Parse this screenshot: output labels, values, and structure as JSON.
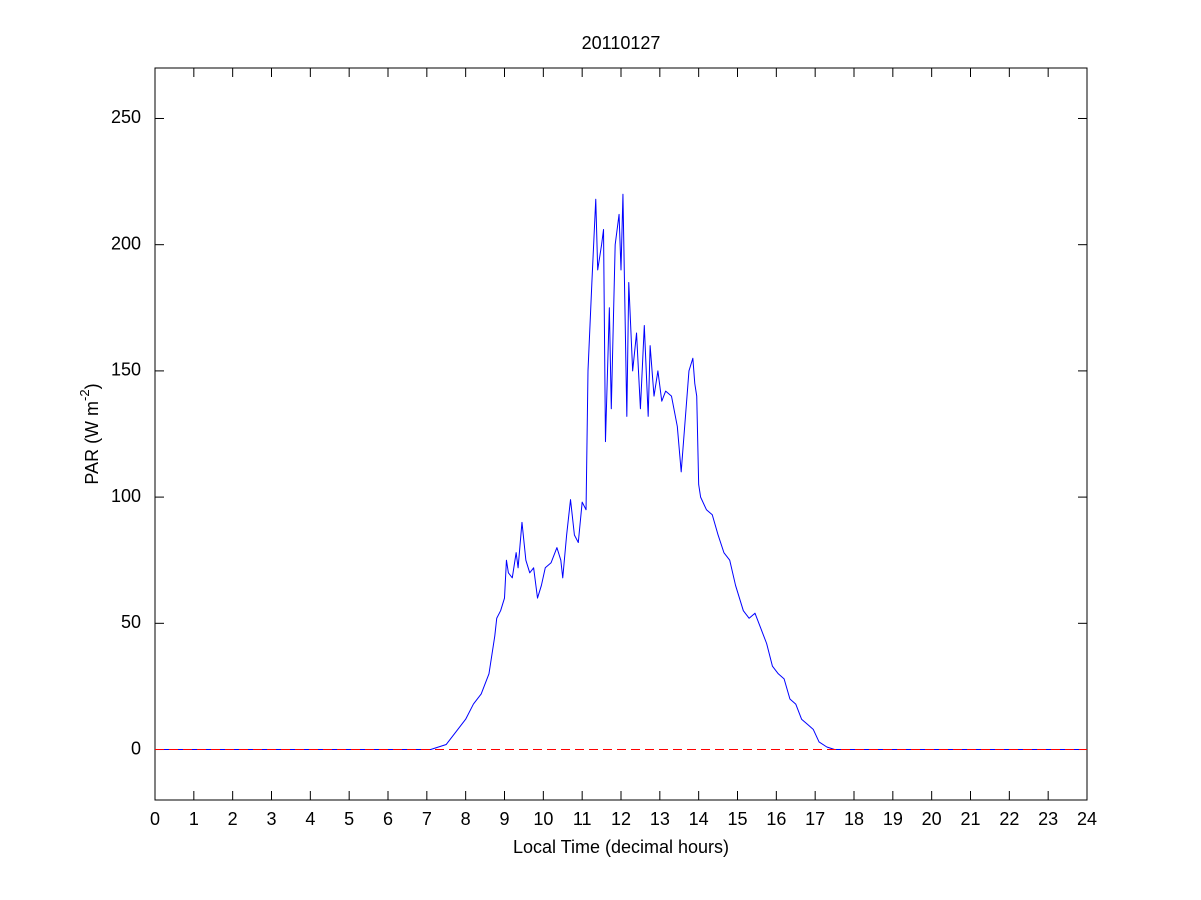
{
  "chart_data": {
    "type": "line",
    "title": "20110127",
    "x_label": "Local Time (decimal hours)",
    "y_label": {
      "text": "PAR (W m",
      "superscript": "-2",
      "after": ")"
    },
    "x": [
      0,
      7.1,
      7.5,
      7.8,
      8.0,
      8.2,
      8.4,
      8.6,
      8.75,
      8.8,
      8.9,
      9.0,
      9.05,
      9.1,
      9.2,
      9.3,
      9.35,
      9.45,
      9.55,
      9.65,
      9.75,
      9.85,
      9.95,
      10.05,
      10.2,
      10.35,
      10.45,
      10.5,
      10.6,
      10.7,
      10.8,
      10.9,
      11.0,
      11.1,
      11.15,
      11.25,
      11.35,
      11.4,
      11.5,
      11.55,
      11.6,
      11.7,
      11.75,
      11.85,
      11.95,
      12.0,
      12.05,
      12.15,
      12.2,
      12.3,
      12.4,
      12.5,
      12.6,
      12.7,
      12.75,
      12.85,
      12.95,
      13.05,
      13.15,
      13.3,
      13.45,
      13.55,
      13.65,
      13.75,
      13.85,
      13.9,
      13.95,
      14.0,
      14.05,
      14.2,
      14.35,
      14.5,
      14.65,
      14.8,
      14.95,
      15.05,
      15.15,
      15.3,
      15.45,
      15.6,
      15.75,
      15.9,
      16.05,
      16.2,
      16.35,
      16.5,
      16.65,
      16.8,
      16.95,
      17.1,
      17.3,
      17.5,
      24
    ],
    "series": [
      {
        "color": "#0000ff",
        "values": [
          0,
          0,
          2,
          8,
          12,
          18,
          22,
          30,
          45,
          52,
          55,
          60,
          75,
          70,
          68,
          78,
          72,
          90,
          75,
          70,
          72,
          60,
          65,
          72,
          74,
          80,
          75,
          68,
          85,
          99,
          85,
          82,
          98,
          95,
          150,
          185,
          218,
          190,
          200,
          206,
          122,
          175,
          135,
          200,
          212,
          190,
          220,
          132,
          185,
          150,
          165,
          135,
          168,
          132,
          160,
          140,
          150,
          138,
          142,
          140,
          128,
          110,
          130,
          150,
          155,
          145,
          140,
          105,
          100,
          95,
          93,
          85,
          78,
          75,
          65,
          60,
          55,
          52,
          54,
          48,
          42,
          33,
          30,
          28,
          20,
          18,
          12,
          10,
          8,
          3,
          1,
          0,
          0
        ]
      }
    ],
    "reference_line": {
      "y": 0,
      "color": "#ff0000",
      "dashed": true
    },
    "xlim": [
      0,
      24
    ],
    "xticks": [
      0,
      1,
      2,
      3,
      4,
      5,
      6,
      7,
      8,
      9,
      10,
      11,
      12,
      13,
      14,
      15,
      16,
      17,
      18,
      19,
      20,
      21,
      22,
      23,
      24
    ],
    "ylim": [
      -20,
      270
    ],
    "yticks": [
      0,
      50,
      100,
      150,
      200,
      250
    ],
    "grid": false
  }
}
